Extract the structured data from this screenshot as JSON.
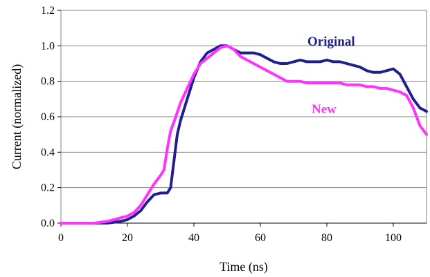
{
  "chart_data": {
    "type": "line",
    "xlabel": "Time (ns)",
    "ylabel": "Current (normalized)",
    "xlim": [
      0,
      110
    ],
    "ylim": [
      0,
      1.2
    ],
    "xticks": [
      "0",
      "20",
      "40",
      "60",
      "80",
      "100"
    ],
    "yticks": [
      "0.0",
      "0.2",
      "0.4",
      "0.6",
      "0.8",
      "1.0",
      "1.2"
    ],
    "grid": "horizontal",
    "legend": "inline labels",
    "series": [
      {
        "name": "Original",
        "color": "#1f1f8f",
        "x": [
          0,
          10,
          14,
          18,
          20,
          22,
          24,
          26,
          28,
          30,
          32,
          33,
          34,
          35,
          36,
          38,
          40,
          42,
          44,
          46,
          48,
          50,
          52,
          54,
          56,
          58,
          60,
          62,
          64,
          66,
          68,
          70,
          72,
          74,
          76,
          78,
          80,
          82,
          84,
          86,
          88,
          90,
          92,
          94,
          96,
          98,
          100,
          102,
          104,
          106,
          108,
          110
        ],
        "y": [
          0.0,
          0.0,
          0.0,
          0.01,
          0.02,
          0.04,
          0.07,
          0.12,
          0.16,
          0.17,
          0.17,
          0.2,
          0.35,
          0.5,
          0.58,
          0.7,
          0.82,
          0.91,
          0.96,
          0.98,
          1.0,
          1.0,
          0.98,
          0.96,
          0.96,
          0.96,
          0.95,
          0.93,
          0.91,
          0.9,
          0.9,
          0.91,
          0.92,
          0.91,
          0.91,
          0.91,
          0.92,
          0.91,
          0.91,
          0.9,
          0.89,
          0.88,
          0.86,
          0.85,
          0.85,
          0.86,
          0.87,
          0.84,
          0.77,
          0.7,
          0.65,
          0.63
        ]
      },
      {
        "name": "New",
        "color": "#ff33ff",
        "x": [
          0,
          10,
          14,
          16,
          18,
          20,
          22,
          24,
          26,
          28,
          30,
          31,
          32,
          33,
          34,
          36,
          38,
          40,
          42,
          44,
          46,
          48,
          50,
          52,
          54,
          56,
          58,
          60,
          62,
          64,
          66,
          68,
          70,
          72,
          74,
          76,
          78,
          80,
          82,
          84,
          86,
          88,
          90,
          92,
          94,
          96,
          98,
          100,
          102,
          104,
          106,
          108,
          110
        ],
        "y": [
          0.0,
          0.0,
          0.01,
          0.02,
          0.03,
          0.04,
          0.06,
          0.1,
          0.16,
          0.22,
          0.27,
          0.3,
          0.42,
          0.52,
          0.57,
          0.68,
          0.76,
          0.84,
          0.9,
          0.93,
          0.96,
          0.99,
          1.0,
          0.98,
          0.94,
          0.92,
          0.9,
          0.88,
          0.86,
          0.84,
          0.82,
          0.8,
          0.8,
          0.8,
          0.79,
          0.79,
          0.79,
          0.79,
          0.79,
          0.79,
          0.78,
          0.78,
          0.78,
          0.77,
          0.77,
          0.76,
          0.76,
          0.75,
          0.74,
          0.72,
          0.65,
          0.55,
          0.5
        ]
      }
    ]
  }
}
